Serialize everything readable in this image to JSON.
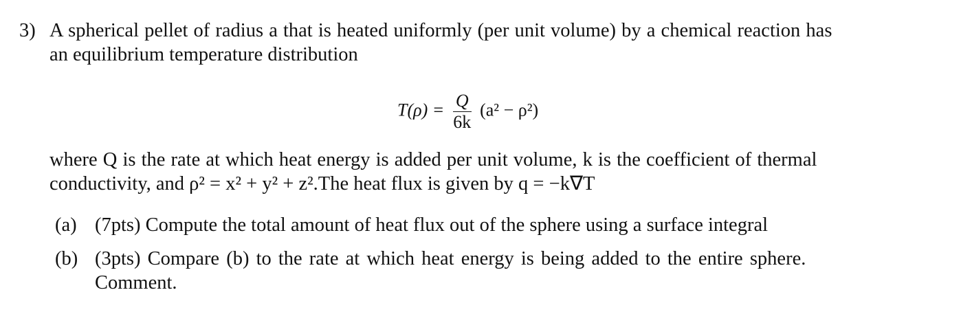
{
  "problem": {
    "number": "3)",
    "intro_line1": "A spherical pellet of radius a that is heated uniformly (per unit volume) by a chemical reaction has",
    "intro_line2": "an equilibrium temperature distribution",
    "equation": {
      "lhs": "T(ρ) =",
      "numerator": "Q",
      "denominator": "6k",
      "rhs": "(a² − ρ²)"
    },
    "where_line1": "where Q is the rate at which heat energy is added per unit volume, k is the coefficient of thermal",
    "where_line2": "conductivity, and ρ² = x² + y² + z².The heat flux is given by q = −k∇T",
    "parts": [
      {
        "label": "(a)",
        "text": "(7pts) Compute the total amount of heat flux out of the sphere using a surface integral"
      },
      {
        "label": "(b)",
        "text": "(3pts) Compare (b) to the rate at which heat energy is being added to the entire sphere.",
        "text2": "Comment."
      }
    ]
  }
}
